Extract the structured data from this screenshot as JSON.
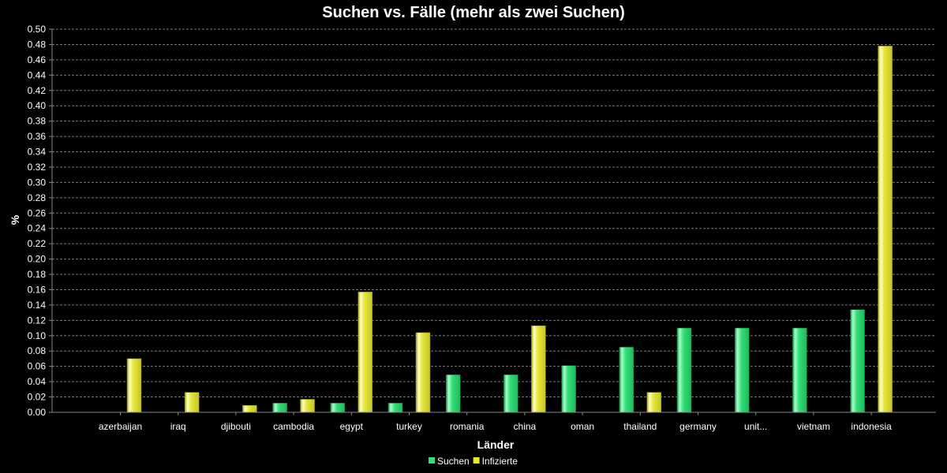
{
  "chart_data": {
    "type": "bar",
    "title": "Suchen vs. Fälle (mehr als zwei Suchen)",
    "xlabel": "Länder",
    "ylabel": "%",
    "ylim": [
      0,
      0.5
    ],
    "ytick_step": 0.02,
    "grid": true,
    "legend_position": "bottom",
    "categories": [
      "azerbaijan",
      "iraq",
      "djibouti",
      "cambodia",
      "egypt",
      "turkey",
      "romania",
      "china",
      "oman",
      "thailand",
      "germany",
      "unit...",
      "vietnam",
      "indonesia"
    ],
    "series": [
      {
        "name": "Suchen",
        "color": "#33dd77",
        "values": [
          0,
          0,
          0,
          0.012,
          0.012,
          0.012,
          0.049,
          0.049,
          0.061,
          0.085,
          0.11,
          0.11,
          0.11,
          0.134
        ]
      },
      {
        "name": "Infizierte",
        "color": "#e6e63a",
        "values": [
          0.07,
          0.026,
          0.009,
          0.017,
          0.157,
          0.104,
          0,
          0.113,
          0,
          0.026,
          0,
          0,
          0,
          0.478
        ]
      }
    ]
  }
}
